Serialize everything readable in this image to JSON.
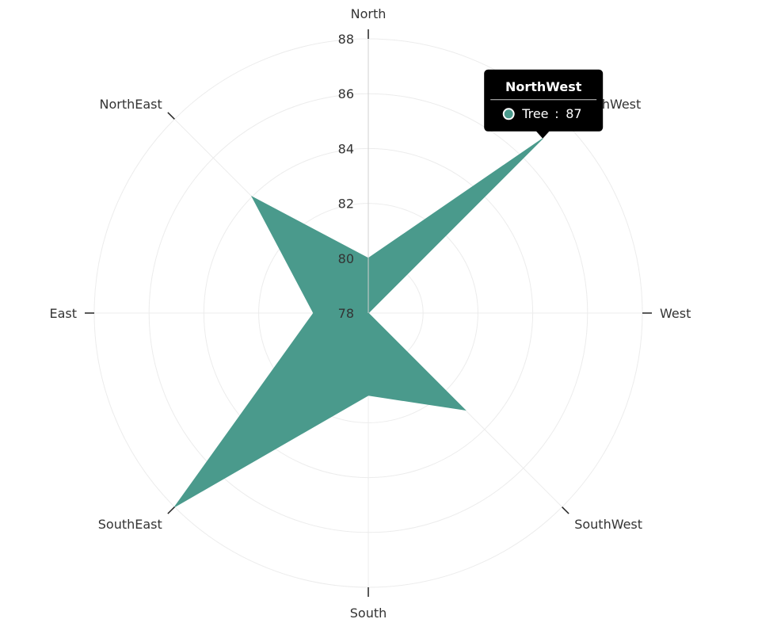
{
  "chart_data": {
    "type": "radar",
    "categories": [
      "North",
      "NorthWest",
      "West",
      "SouthWest",
      "South",
      "SouthEast",
      "East",
      "NorthEast"
    ],
    "series": [
      {
        "name": "Tree",
        "color": "#4a9a8c",
        "values": [
          80,
          87,
          78,
          83,
          81,
          88,
          80,
          84
        ]
      }
    ],
    "radial_axis": {
      "min": 78,
      "max": 88,
      "ticks": [
        78,
        80,
        82,
        84,
        86,
        88
      ]
    },
    "grid": true,
    "tooltip": {
      "category": "NorthWest",
      "series_name": "Tree",
      "separator": ":",
      "value": "87"
    }
  }
}
